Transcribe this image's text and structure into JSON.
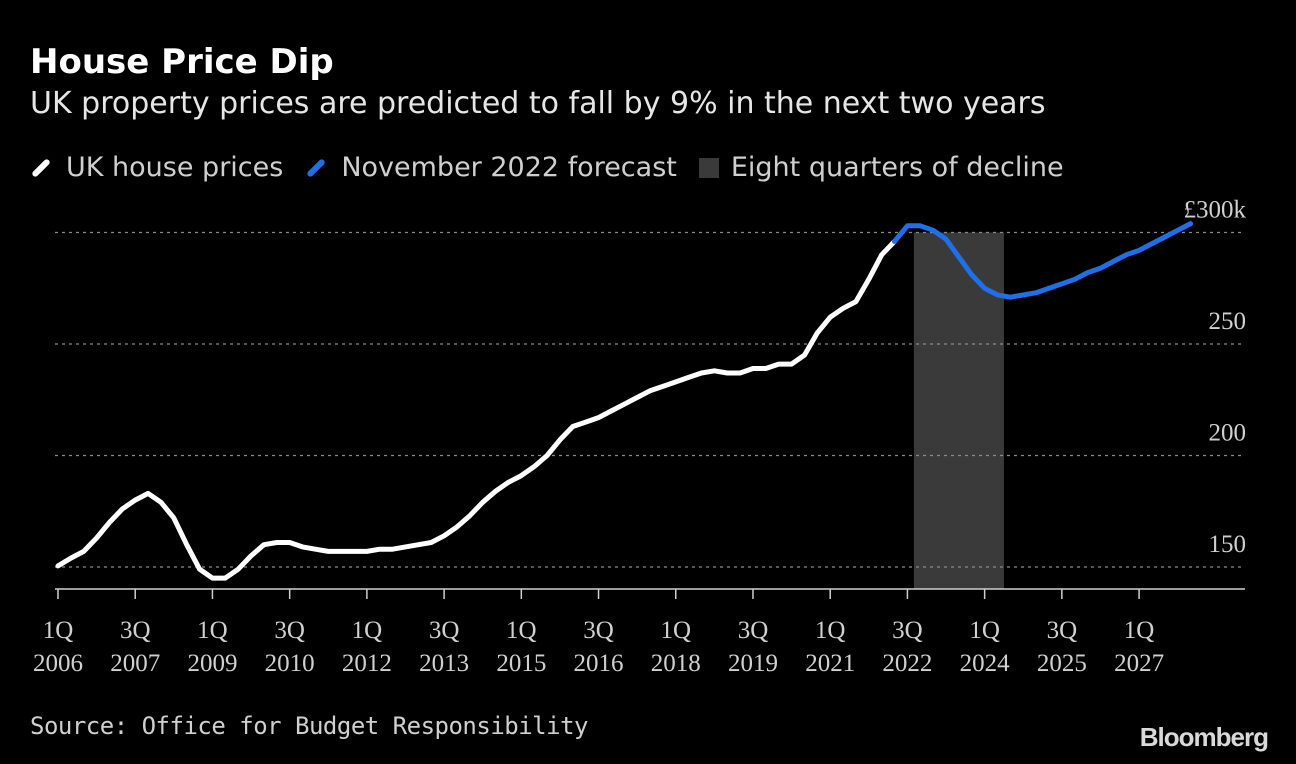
{
  "header": {
    "title": "House Price Dip",
    "subtitle": "UK property prices are predicted to fall by 9% in the next two years"
  },
  "legend": {
    "items": [
      {
        "label": "UK house prices",
        "color": "#ffffff"
      },
      {
        "label": "November 2022 forecast",
        "color": "#1f6fe8"
      },
      {
        "label": "Eight quarters of decline",
        "color": "#3a3a3a"
      }
    ]
  },
  "footer": {
    "source": "Source: Office for Budget Responsibility",
    "brand": "Bloomberg"
  },
  "chart_data": {
    "type": "line",
    "title": "House Price Dip",
    "subtitle": "UK property prices are predicted to fall by 9% in the next two years",
    "xlabel": "",
    "ylabel": "",
    "unit_label": "£300k",
    "ylim": [
      140,
      300
    ],
    "yticks": [
      {
        "value": 150,
        "label": "150"
      },
      {
        "value": 200,
        "label": "200"
      },
      {
        "value": 250,
        "label": "250"
      },
      {
        "value": 300,
        "label": "£300k"
      }
    ],
    "x_start": {
      "year": 2006,
      "quarter": 1
    },
    "xticks": [
      {
        "index": 0,
        "top": "1Q",
        "bottom": "2006"
      },
      {
        "index": 6,
        "top": "3Q",
        "bottom": "2007"
      },
      {
        "index": 12,
        "top": "1Q",
        "bottom": "2009"
      },
      {
        "index": 18,
        "top": "3Q",
        "bottom": "2010"
      },
      {
        "index": 24,
        "top": "1Q",
        "bottom": "2012"
      },
      {
        "index": 30,
        "top": "3Q",
        "bottom": "2013"
      },
      {
        "index": 36,
        "top": "1Q",
        "bottom": "2015"
      },
      {
        "index": 42,
        "top": "3Q",
        "bottom": "2016"
      },
      {
        "index": 48,
        "top": "1Q",
        "bottom": "2018"
      },
      {
        "index": 54,
        "top": "3Q",
        "bottom": "2019"
      },
      {
        "index": 60,
        "top": "1Q",
        "bottom": "2021"
      },
      {
        "index": 66,
        "top": "3Q",
        "bottom": "2022"
      },
      {
        "index": 72,
        "top": "1Q",
        "bottom": "2024"
      },
      {
        "index": 78,
        "top": "3Q",
        "bottom": "2025"
      },
      {
        "index": 84,
        "top": "1Q",
        "bottom": "2027"
      }
    ],
    "x_last_index": 88,
    "shaded_region": {
      "label": "Eight quarters of decline",
      "from_index": 66.5,
      "to_index": 73.5
    },
    "series": [
      {
        "name": "UK house prices",
        "color": "#ffffff",
        "start_index": 0,
        "values": [
          150.5,
          154,
          157,
          163,
          170,
          176,
          180,
          183,
          179,
          172,
          160,
          149,
          145,
          145,
          149,
          155,
          160,
          161,
          161,
          159,
          158,
          157,
          157,
          157,
          157,
          158,
          158,
          159,
          160,
          161,
          164,
          168,
          173,
          179,
          184,
          188,
          191,
          195,
          200,
          207,
          213,
          215,
          217,
          220,
          223,
          226,
          229,
          231,
          233,
          235,
          237,
          238,
          237,
          237,
          239,
          239,
          241,
          241,
          245,
          255,
          262,
          266,
          269,
          279,
          290,
          296
        ]
      },
      {
        "name": "November 2022 forecast",
        "color": "#1f6fe8",
        "start_index": 65,
        "values": [
          296,
          303,
          303,
          301,
          297,
          289,
          281,
          275,
          272,
          271,
          272,
          273,
          275,
          277,
          279,
          282,
          284,
          287,
          290,
          292,
          295,
          298,
          301,
          304
        ]
      }
    ]
  }
}
